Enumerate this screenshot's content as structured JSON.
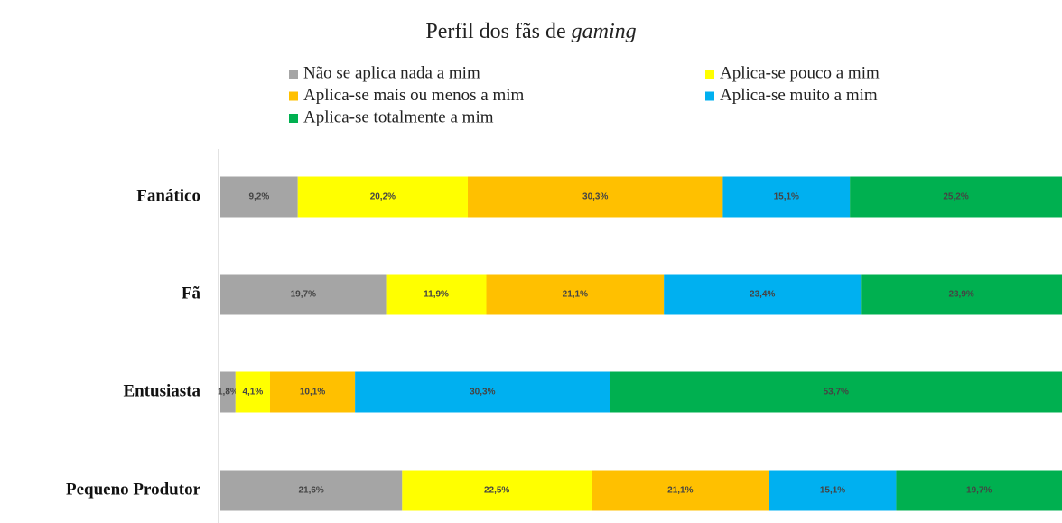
{
  "chart_data": {
    "type": "bar",
    "orientation": "horizontal",
    "stacked": true,
    "title": [
      "Perfil dos fãs de ",
      "gaming"
    ],
    "categories": [
      "Fanático",
      "Fã",
      "Entusiasta",
      "Pequeno Produtor"
    ],
    "xlim": [
      0,
      100
    ],
    "series": [
      {
        "name": "Não se aplica nada a mim",
        "color": "#a5a5a5",
        "values": [
          9.2,
          19.7,
          1.8,
          21.6
        ],
        "value_labels": [
          "9,2%",
          "19,7%",
          "1,8%",
          "21,6%"
        ]
      },
      {
        "name": "Aplica-se pouco a mim",
        "color": "#ffff00",
        "values": [
          20.2,
          11.9,
          4.1,
          22.5
        ],
        "value_labels": [
          "20,2%",
          "11,9%",
          "4,1%",
          "22,5%"
        ]
      },
      {
        "name": "Aplica-se mais ou menos a mim",
        "color": "#ffc000",
        "values": [
          30.3,
          21.1,
          10.1,
          21.1
        ],
        "value_labels": [
          "30,3%",
          "21,1%",
          "10,1%",
          "21,1%"
        ]
      },
      {
        "name": "Aplica-se muito a mim",
        "color": "#00b0f0",
        "values": [
          15.1,
          23.4,
          30.3,
          15.1
        ],
        "value_labels": [
          "15,1%",
          "23,4%",
          "30,3%",
          "15,1%"
        ]
      },
      {
        "name": "Aplica-se totalmente a mim",
        "color": "#00b050",
        "values": [
          25.2,
          23.9,
          53.7,
          19.7
        ],
        "value_labels": [
          "25,2%",
          "23,9%",
          "53,7%",
          "19,7%"
        ]
      }
    ],
    "legend": "top"
  }
}
